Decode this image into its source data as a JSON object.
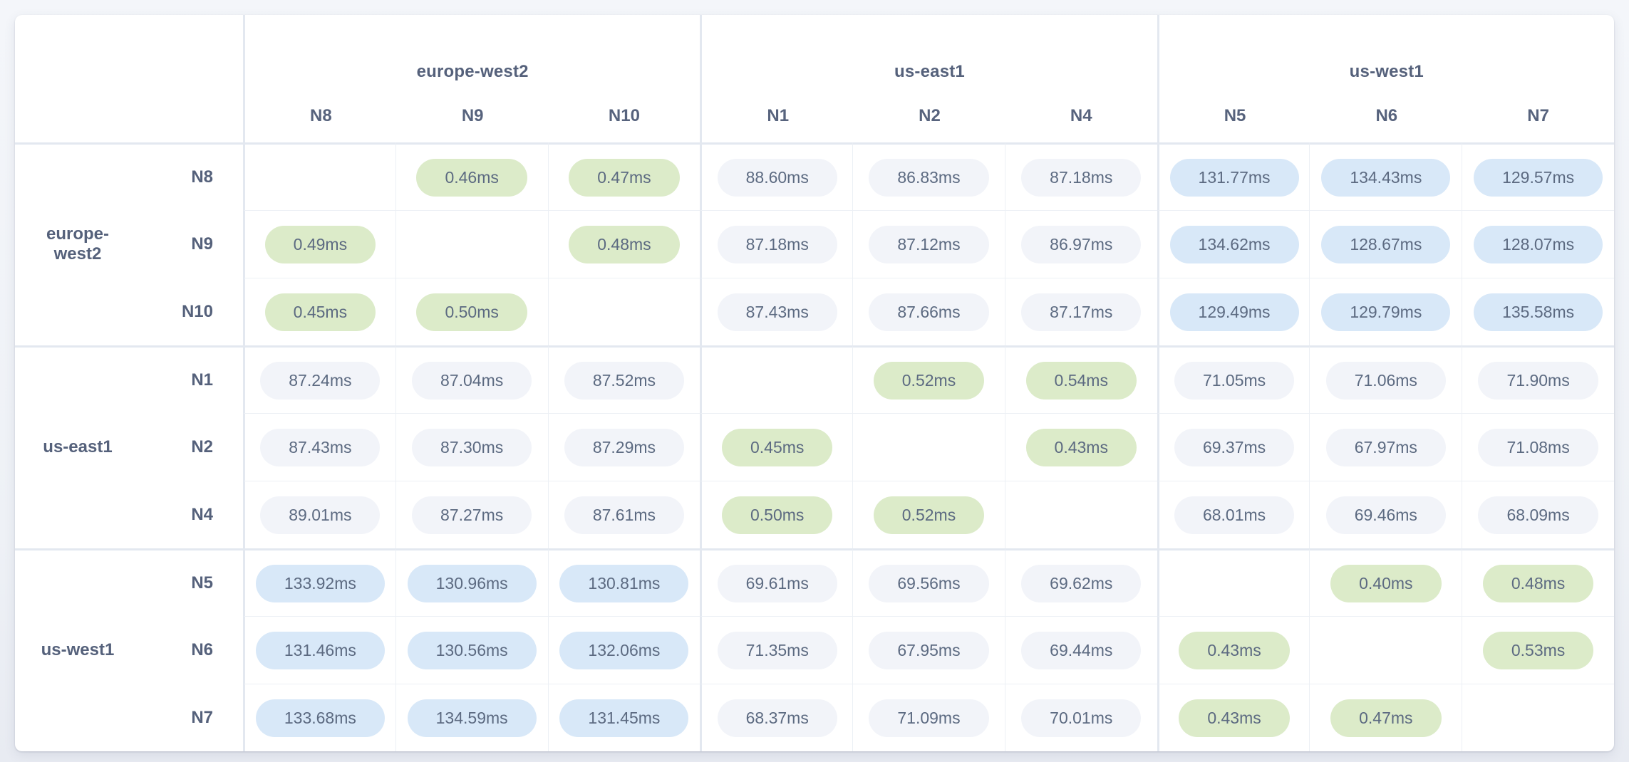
{
  "colors": {
    "pill_green": "#dcebc9",
    "pill_blue": "#d8e8f8",
    "pill_gray": "#f2f4f9",
    "label_text": "#55617b",
    "value_text": "#5c6a81"
  },
  "column_groups": [
    {
      "label": "europe-west2",
      "nodes": [
        "N8",
        "N9",
        "N10"
      ]
    },
    {
      "label": "us-east1",
      "nodes": [
        "N1",
        "N2",
        "N4"
      ]
    },
    {
      "label": "us-west1",
      "nodes": [
        "N5",
        "N6",
        "N7"
      ]
    }
  ],
  "row_groups": [
    {
      "label": "europe-west2",
      "rows": [
        {
          "node": "N8",
          "cells": [
            null,
            {
              "v": "0.46ms",
              "c": "green"
            },
            {
              "v": "0.47ms",
              "c": "green"
            },
            {
              "v": "88.60ms",
              "c": "gray"
            },
            {
              "v": "86.83ms",
              "c": "gray"
            },
            {
              "v": "87.18ms",
              "c": "gray"
            },
            {
              "v": "131.77ms",
              "c": "blue"
            },
            {
              "v": "134.43ms",
              "c": "blue"
            },
            {
              "v": "129.57ms",
              "c": "blue"
            }
          ]
        },
        {
          "node": "N9",
          "cells": [
            {
              "v": "0.49ms",
              "c": "green"
            },
            null,
            {
              "v": "0.48ms",
              "c": "green"
            },
            {
              "v": "87.18ms",
              "c": "gray"
            },
            {
              "v": "87.12ms",
              "c": "gray"
            },
            {
              "v": "86.97ms",
              "c": "gray"
            },
            {
              "v": "134.62ms",
              "c": "blue"
            },
            {
              "v": "128.67ms",
              "c": "blue"
            },
            {
              "v": "128.07ms",
              "c": "blue"
            }
          ]
        },
        {
          "node": "N10",
          "cells": [
            {
              "v": "0.45ms",
              "c": "green"
            },
            {
              "v": "0.50ms",
              "c": "green"
            },
            null,
            {
              "v": "87.43ms",
              "c": "gray"
            },
            {
              "v": "87.66ms",
              "c": "gray"
            },
            {
              "v": "87.17ms",
              "c": "gray"
            },
            {
              "v": "129.49ms",
              "c": "blue"
            },
            {
              "v": "129.79ms",
              "c": "blue"
            },
            {
              "v": "135.58ms",
              "c": "blue"
            }
          ]
        }
      ]
    },
    {
      "label": "us-east1",
      "rows": [
        {
          "node": "N1",
          "cells": [
            {
              "v": "87.24ms",
              "c": "gray"
            },
            {
              "v": "87.04ms",
              "c": "gray"
            },
            {
              "v": "87.52ms",
              "c": "gray"
            },
            null,
            {
              "v": "0.52ms",
              "c": "green"
            },
            {
              "v": "0.54ms",
              "c": "green"
            },
            {
              "v": "71.05ms",
              "c": "gray"
            },
            {
              "v": "71.06ms",
              "c": "gray"
            },
            {
              "v": "71.90ms",
              "c": "gray"
            }
          ]
        },
        {
          "node": "N2",
          "cells": [
            {
              "v": "87.43ms",
              "c": "gray"
            },
            {
              "v": "87.30ms",
              "c": "gray"
            },
            {
              "v": "87.29ms",
              "c": "gray"
            },
            {
              "v": "0.45ms",
              "c": "green"
            },
            null,
            {
              "v": "0.43ms",
              "c": "green"
            },
            {
              "v": "69.37ms",
              "c": "gray"
            },
            {
              "v": "67.97ms",
              "c": "gray"
            },
            {
              "v": "71.08ms",
              "c": "gray"
            }
          ]
        },
        {
          "node": "N4",
          "cells": [
            {
              "v": "89.01ms",
              "c": "gray"
            },
            {
              "v": "87.27ms",
              "c": "gray"
            },
            {
              "v": "87.61ms",
              "c": "gray"
            },
            {
              "v": "0.50ms",
              "c": "green"
            },
            {
              "v": "0.52ms",
              "c": "green"
            },
            null,
            {
              "v": "68.01ms",
              "c": "gray"
            },
            {
              "v": "69.46ms",
              "c": "gray"
            },
            {
              "v": "68.09ms",
              "c": "gray"
            }
          ]
        }
      ]
    },
    {
      "label": "us-west1",
      "rows": [
        {
          "node": "N5",
          "cells": [
            {
              "v": "133.92ms",
              "c": "blue"
            },
            {
              "v": "130.96ms",
              "c": "blue"
            },
            {
              "v": "130.81ms",
              "c": "blue"
            },
            {
              "v": "69.61ms",
              "c": "gray"
            },
            {
              "v": "69.56ms",
              "c": "gray"
            },
            {
              "v": "69.62ms",
              "c": "gray"
            },
            null,
            {
              "v": "0.40ms",
              "c": "green"
            },
            {
              "v": "0.48ms",
              "c": "green"
            }
          ]
        },
        {
          "node": "N6",
          "cells": [
            {
              "v": "131.46ms",
              "c": "blue"
            },
            {
              "v": "130.56ms",
              "c": "blue"
            },
            {
              "v": "132.06ms",
              "c": "blue"
            },
            {
              "v": "71.35ms",
              "c": "gray"
            },
            {
              "v": "67.95ms",
              "c": "gray"
            },
            {
              "v": "69.44ms",
              "c": "gray"
            },
            {
              "v": "0.43ms",
              "c": "green"
            },
            null,
            {
              "v": "0.53ms",
              "c": "green"
            }
          ]
        },
        {
          "node": "N7",
          "cells": [
            {
              "v": "133.68ms",
              "c": "blue"
            },
            {
              "v": "134.59ms",
              "c": "blue"
            },
            {
              "v": "131.45ms",
              "c": "blue"
            },
            {
              "v": "68.37ms",
              "c": "gray"
            },
            {
              "v": "71.09ms",
              "c": "gray"
            },
            {
              "v": "70.01ms",
              "c": "gray"
            },
            {
              "v": "0.43ms",
              "c": "green"
            },
            {
              "v": "0.47ms",
              "c": "green"
            },
            null
          ]
        }
      ]
    }
  ]
}
